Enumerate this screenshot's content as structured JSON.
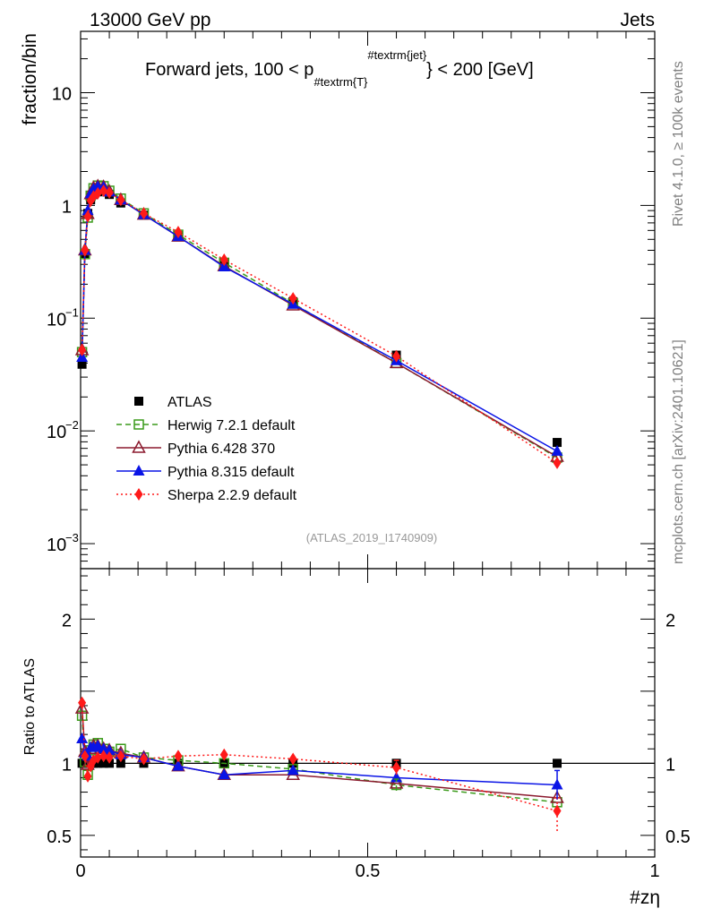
{
  "header": {
    "energy": "13000 GeV pp",
    "category": "Jets",
    "title": "Forward jets, 100 < p",
    "title_sub": "#textrm{T}",
    "title_sup": "#textrm{jet}",
    "title_end": "} < 200 [GeV]",
    "side_top": "Rivet 4.1.0, ≥ 100k events",
    "side_bottom": "mcplots.cern.ch [arXiv:2401.10621]",
    "analysis": "(ATLAS_2019_I1740909)"
  },
  "axes": {
    "ylabel_main": "fraction/bin",
    "ylabel_ratio": "Ratio to ATLAS",
    "xlabel": "#zη",
    "main_ticks": [
      {
        "value": 10,
        "label": "10",
        "exp": ""
      },
      {
        "value": 1,
        "label": "1",
        "exp": ""
      },
      {
        "value": 0.1,
        "label": "10",
        "exp": "−1"
      },
      {
        "value": 0.01,
        "label": "10",
        "exp": "−2"
      },
      {
        "value": 0.001,
        "label": "10",
        "exp": "−3"
      }
    ],
    "ratio_ticks": [
      {
        "value": 2,
        "label": "2"
      },
      {
        "value": 1,
        "label": "1"
      },
      {
        "value": 0.5,
        "label": "0.5"
      }
    ],
    "x_ticks": [
      {
        "value": 0,
        "label": "0"
      },
      {
        "value": 0.5,
        "label": "0.5"
      },
      {
        "value": 1,
        "label": "1"
      }
    ]
  },
  "chart_data": {
    "type": "scatter",
    "xlim": [
      0,
      1
    ],
    "ylim_main": [
      0.0006,
      35
    ],
    "ylim_ratio": [
      0.35,
      2.35
    ],
    "yscale_main": "log",
    "x": [
      0.0025,
      0.0075,
      0.0125,
      0.0175,
      0.0225,
      0.03,
      0.04,
      0.05,
      0.07,
      0.11,
      0.17,
      0.25,
      0.37,
      0.55,
      0.83
    ],
    "series": [
      {
        "name": "ATLAS",
        "color": "#000000",
        "marker": "square-filled",
        "line": "none",
        "values": [
          0.039,
          0.37,
          0.85,
          1.12,
          1.25,
          1.32,
          1.35,
          1.25,
          1.05,
          0.82,
          0.54,
          0.31,
          0.14,
          0.047,
          0.0079
        ]
      },
      {
        "name": "Herwig 7.2.1 default",
        "color": "#3a9a1a",
        "marker": "square-open",
        "line": "dashed",
        "values": [
          0.05,
          0.37,
          0.78,
          1.22,
          1.42,
          1.5,
          1.48,
          1.35,
          1.15,
          0.85,
          0.55,
          0.31,
          0.135,
          0.04,
          0.0058
        ],
        "ratio": [
          1.33,
          1.01,
          0.92,
          1.09,
          1.13,
          1.14,
          1.1,
          1.08,
          1.1,
          1.04,
          1.02,
          1.0,
          0.96,
          0.85,
          0.73
        ]
      },
      {
        "name": "Pythia 6.428 370",
        "color": "#8b1a2e",
        "marker": "triangle-open",
        "line": "solid",
        "values": [
          0.052,
          0.4,
          0.84,
          1.26,
          1.43,
          1.48,
          1.46,
          1.33,
          1.12,
          0.83,
          0.53,
          0.29,
          0.13,
          0.04,
          0.0059
        ],
        "ratio": [
          1.38,
          1.08,
          0.99,
          1.1,
          1.12,
          1.12,
          1.1,
          1.09,
          1.07,
          1.04,
          0.98,
          0.92,
          0.92,
          0.86,
          0.76
        ]
      },
      {
        "name": "Pythia 8.315 default",
        "color": "#0a14e6",
        "marker": "triangle-filled",
        "line": "solid",
        "values": [
          0.045,
          0.4,
          0.9,
          1.27,
          1.4,
          1.47,
          1.45,
          1.32,
          1.12,
          0.83,
          0.53,
          0.285,
          0.133,
          0.042,
          0.0066
        ],
        "ratio": [
          1.17,
          1.07,
          1.05,
          1.11,
          1.11,
          1.12,
          1.1,
          1.09,
          1.06,
          1.04,
          0.98,
          0.92,
          0.95,
          0.9,
          0.85
        ]
      },
      {
        "name": "Sherpa 2.2.9 default",
        "color": "#ff1a1a",
        "marker": "diamond-filled",
        "line": "dotted",
        "values": [
          0.052,
          0.4,
          0.8,
          1.1,
          1.2,
          1.28,
          1.35,
          1.3,
          1.12,
          0.85,
          0.58,
          0.33,
          0.15,
          0.046,
          0.0052
        ],
        "ratio": [
          1.42,
          1.05,
          0.91,
          0.98,
          1.02,
          1.04,
          1.05,
          1.04,
          1.05,
          1.03,
          1.05,
          1.06,
          1.03,
          0.97,
          0.67
        ]
      }
    ],
    "error_bars_ratio": [
      {
        "series": 4,
        "index": 13,
        "lo": 0.92,
        "hi": 1.02
      },
      {
        "series": 4,
        "index": 14,
        "lo": 0.53,
        "hi": 0.76
      },
      {
        "series": 3,
        "index": 14,
        "lo": 0.75,
        "hi": 0.95
      },
      {
        "series": 1,
        "index": 13,
        "lo": 0.81,
        "hi": 0.89
      }
    ]
  }
}
